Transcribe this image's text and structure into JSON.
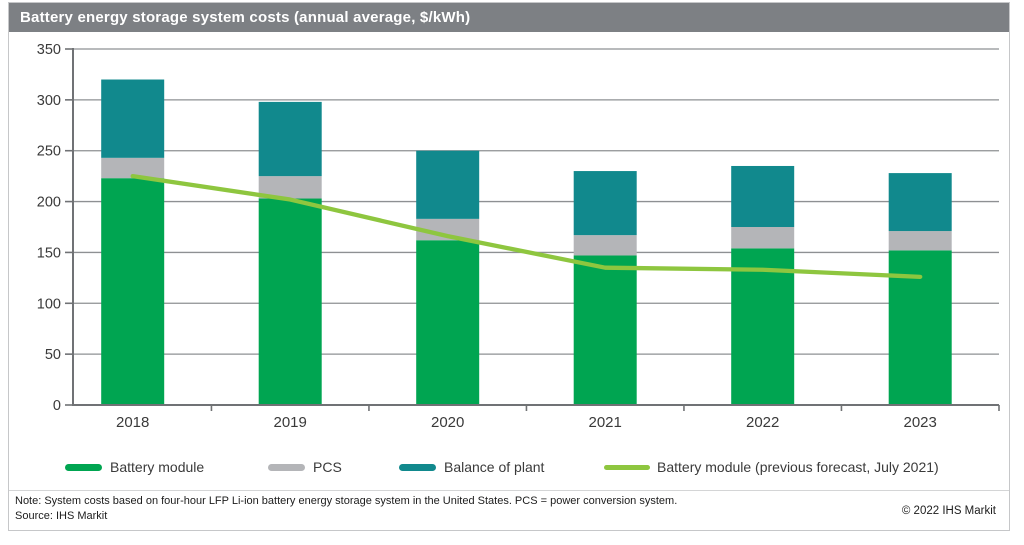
{
  "title": "Battery energy storage system costs (annual average, $/kWh)",
  "chart_data": {
    "type": "bar",
    "stacked": true,
    "title": "Battery energy storage system costs (annual average, $/kWh)",
    "categories": [
      "2018",
      "2019",
      "2020",
      "2021",
      "2022",
      "2023"
    ],
    "series": [
      {
        "name": "Battery module",
        "color": "#00a551",
        "values": [
          223,
          203,
          162,
          147,
          154,
          152
        ]
      },
      {
        "name": "PCS",
        "color": "#b4b5b8",
        "values": [
          20,
          22,
          21,
          20,
          21,
          19
        ]
      },
      {
        "name": "Balance of plant",
        "color": "#11898d",
        "values": [
          77,
          73,
          67,
          63,
          60,
          57
        ]
      }
    ],
    "stack_totals": [
      320,
      298,
      250,
      230,
      235,
      228
    ],
    "line_series": {
      "name": "Battery module (previous forecast, July 2021)",
      "color": "#8ec63f",
      "values": [
        225,
        202,
        166,
        135,
        133,
        126
      ]
    },
    "xlabel": "",
    "ylabel": "",
    "ylim": [
      0,
      350
    ],
    "ytick_step": 50,
    "grid": true,
    "legend_position": "bottom",
    "axis_color": "#707275",
    "grid_color": "#8e9093",
    "tick_label_color": "#3a3a3a"
  },
  "footer": {
    "note": "Note: System costs based on four-hour LFP Li-ion battery energy storage system in the United States. PCS = power conversion system.",
    "source": "Source: IHS Markit",
    "copyright": "© 2022 IHS Markit"
  }
}
